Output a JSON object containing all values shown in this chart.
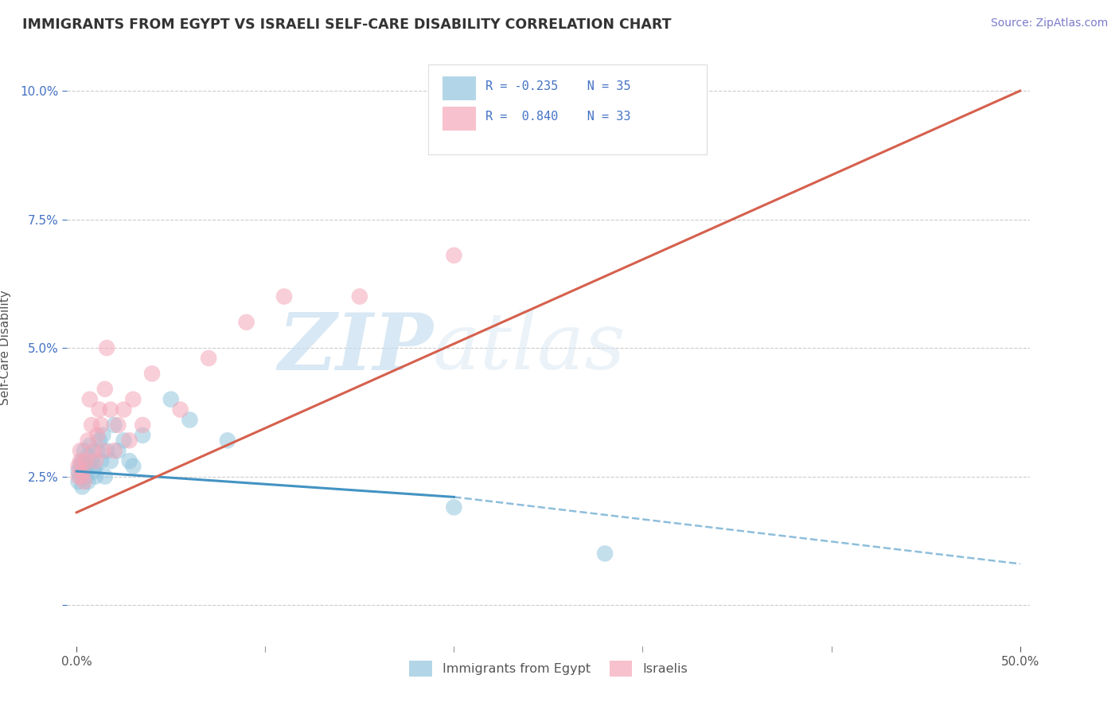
{
  "title": "IMMIGRANTS FROM EGYPT VS ISRAELI SELF-CARE DISABILITY CORRELATION CHART",
  "source": "Source: ZipAtlas.com",
  "ylabel": "Self-Care Disability",
  "xlim": [
    -0.005,
    0.505
  ],
  "ylim": [
    -0.008,
    0.108
  ],
  "xticks": [
    0.0,
    0.1,
    0.2,
    0.3,
    0.4,
    0.5
  ],
  "yticks": [
    0.0,
    0.025,
    0.05,
    0.075,
    0.1
  ],
  "ytick_labels": [
    "",
    "2.5%",
    "5.0%",
    "7.5%",
    "10.0%"
  ],
  "xtick_labels": [
    "0.0%",
    "",
    "",
    "",
    "",
    "50.0%"
  ],
  "blue_color": "#92c5de",
  "pink_color": "#f4a7b9",
  "blue_line_color": "#4393c3",
  "pink_line_color": "#d6604d",
  "watermark_zip": "ZIP",
  "watermark_atlas": "atlas",
  "background_color": "#ffffff",
  "grid_color": "#cccccc",
  "title_color": "#333333",
  "axis_color": "#555555",
  "blue_scatter_x": [
    0.001,
    0.001,
    0.002,
    0.002,
    0.003,
    0.003,
    0.004,
    0.004,
    0.005,
    0.005,
    0.006,
    0.006,
    0.007,
    0.008,
    0.009,
    0.01,
    0.01,
    0.011,
    0.012,
    0.013,
    0.014,
    0.015,
    0.016,
    0.018,
    0.02,
    0.022,
    0.025,
    0.028,
    0.03,
    0.035,
    0.05,
    0.06,
    0.08,
    0.2,
    0.28
  ],
  "blue_scatter_y": [
    0.026,
    0.024,
    0.027,
    0.025,
    0.028,
    0.023,
    0.026,
    0.03,
    0.027,
    0.025,
    0.024,
    0.029,
    0.031,
    0.028,
    0.026,
    0.025,
    0.027,
    0.03,
    0.032,
    0.028,
    0.033,
    0.025,
    0.03,
    0.028,
    0.035,
    0.03,
    0.032,
    0.028,
    0.027,
    0.033,
    0.04,
    0.036,
    0.032,
    0.019,
    0.01
  ],
  "pink_scatter_x": [
    0.001,
    0.001,
    0.002,
    0.002,
    0.003,
    0.003,
    0.004,
    0.005,
    0.006,
    0.007,
    0.008,
    0.009,
    0.01,
    0.011,
    0.012,
    0.013,
    0.014,
    0.015,
    0.016,
    0.018,
    0.02,
    0.022,
    0.025,
    0.028,
    0.03,
    0.035,
    0.04,
    0.055,
    0.07,
    0.09,
    0.11,
    0.15,
    0.2
  ],
  "pink_scatter_y": [
    0.027,
    0.025,
    0.028,
    0.03,
    0.025,
    0.026,
    0.024,
    0.028,
    0.032,
    0.04,
    0.035,
    0.03,
    0.028,
    0.033,
    0.038,
    0.035,
    0.03,
    0.042,
    0.05,
    0.038,
    0.03,
    0.035,
    0.038,
    0.032,
    0.04,
    0.035,
    0.045,
    0.038,
    0.048,
    0.055,
    0.06,
    0.06,
    0.068
  ],
  "blue_line_start_x": 0.0,
  "blue_line_start_y": 0.026,
  "blue_line_end_solid_x": 0.2,
  "blue_line_end_solid_y": 0.021,
  "blue_line_end_dash_x": 0.5,
  "blue_line_end_dash_y": 0.008,
  "pink_line_start_x": 0.0,
  "pink_line_start_y": 0.018,
  "pink_line_end_x": 0.5,
  "pink_line_end_y": 0.1
}
